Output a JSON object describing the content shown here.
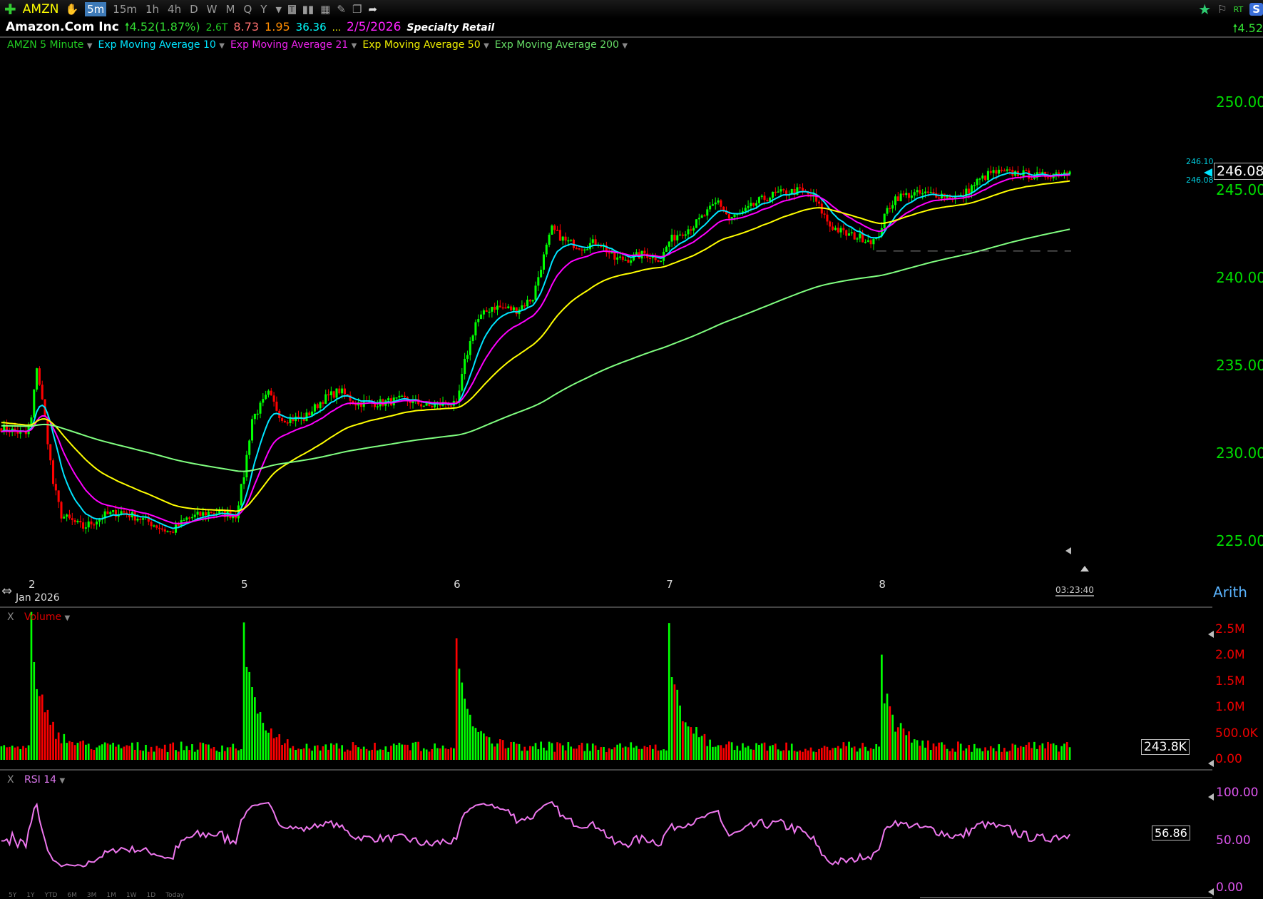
{
  "toolbar": {
    "symbol": "AMZN",
    "timeframes": [
      "5m",
      "15m",
      "1h",
      "4h",
      "D",
      "W",
      "M",
      "Q",
      "Y"
    ],
    "active_timeframe": "5m",
    "rt_label": "RT",
    "s_label": "S"
  },
  "info": {
    "name": "Amazon.Com Inc",
    "change": "4.52",
    "change_pct": "(1.87%)",
    "market_cap": "2.6T",
    "v1": "8.73",
    "v2": "1.95",
    "v3": "36.36",
    "ellipsis": "...",
    "date": "2/5/2026",
    "sector": "Specialty Retail",
    "right_change": "4.52"
  },
  "legend": {
    "series": "AMZN 5 Minute",
    "ema10": "Exp Moving Average 10",
    "ema21": "Exp Moving Average 21",
    "ema50": "Exp Moving Average 50",
    "ema200": "Exp Moving Average 200"
  },
  "colors": {
    "up": "#00ff00",
    "down": "#ff0000",
    "ema10": "#00e5ff",
    "ema21": "#ff00ff",
    "ema50": "#ffff00",
    "ema200": "#80ff80",
    "rsi": "#ee77ee"
  },
  "price_axis": {
    "ticks": [
      "250.00",
      "245.00",
      "240.00",
      "235.00",
      "230.00",
      "225.00"
    ],
    "last": "246.08",
    "bid": "246.10",
    "ask": "246.08",
    "scale": "Arith"
  },
  "time_axis": {
    "days": [
      "2",
      "5",
      "6",
      "7",
      "8"
    ],
    "month": "Jan 2026",
    "clock": "03:23:40"
  },
  "volume": {
    "label": "Volume",
    "close_label": "X",
    "ticks": [
      "2.5M",
      "2.0M",
      "1.5M",
      "1.0M",
      "500.0K",
      "0.00"
    ],
    "last": "243.8K"
  },
  "rsi": {
    "label": "RSI 14",
    "close_label": "X",
    "ticks": [
      "100.00",
      "50.00",
      "0.00"
    ],
    "last": "56.86"
  },
  "ranges": [
    "5Y",
    "1Y",
    "YTD",
    "6M",
    "3M",
    "1M",
    "1W",
    "1D",
    "Today"
  ],
  "chart_data": {
    "type": "candlestick",
    "interval": "5 Minute",
    "ylim": [
      223,
      252
    ],
    "total_bars": 393,
    "day_start_bars": [
      11,
      89,
      167,
      245,
      323
    ],
    "close_keypoints": [
      [
        0,
        231.5
      ],
      [
        9,
        231.1
      ],
      [
        11,
        232
      ],
      [
        13,
        235
      ],
      [
        16,
        232
      ],
      [
        19,
        228.3
      ],
      [
        22,
        226.5
      ],
      [
        30,
        225.8
      ],
      [
        38,
        226.5
      ],
      [
        44,
        226.7
      ],
      [
        53,
        226.2
      ],
      [
        62,
        225.5
      ],
      [
        68,
        226.3
      ],
      [
        77,
        226.7
      ],
      [
        86,
        226.5
      ],
      [
        89,
        228.8
      ],
      [
        92,
        232
      ],
      [
        98,
        233.4
      ],
      [
        103,
        232
      ],
      [
        111,
        232
      ],
      [
        118,
        233.1
      ],
      [
        124,
        233.6
      ],
      [
        130,
        232.9
      ],
      [
        139,
        232.9
      ],
      [
        148,
        233.1
      ],
      [
        157,
        232.7
      ],
      [
        164,
        232.9
      ],
      [
        167,
        232.7
      ],
      [
        170,
        235.2
      ],
      [
        174,
        237.5
      ],
      [
        180,
        238.4
      ],
      [
        189,
        238.2
      ],
      [
        195,
        238.9
      ],
      [
        198,
        240.7
      ],
      [
        202,
        242.8
      ],
      [
        207,
        242.1
      ],
      [
        213,
        241.8
      ],
      [
        219,
        242.1
      ],
      [
        225,
        241.1
      ],
      [
        230,
        241.1
      ],
      [
        236,
        241.4
      ],
      [
        242,
        241.1
      ],
      [
        245,
        242.1
      ],
      [
        248,
        242.5
      ],
      [
        254,
        243
      ],
      [
        260,
        243.9
      ],
      [
        263,
        244.4
      ],
      [
        267,
        243.4
      ],
      [
        272,
        243.7
      ],
      [
        278,
        244.4
      ],
      [
        284,
        244.8
      ],
      [
        293,
        245
      ],
      [
        298,
        244.6
      ],
      [
        304,
        243
      ],
      [
        310,
        242.5
      ],
      [
        316,
        242.3
      ],
      [
        321,
        242.1
      ],
      [
        325,
        243.9
      ],
      [
        328,
        244.6
      ],
      [
        334,
        244.8
      ],
      [
        343,
        244.8
      ],
      [
        352,
        244.6
      ],
      [
        358,
        245.5
      ],
      [
        363,
        246
      ],
      [
        372,
        246
      ],
      [
        381,
        245.8
      ],
      [
        387,
        246
      ],
      [
        393,
        246.08
      ]
    ],
    "support_level": 241.55,
    "volume_open_spikes_M": [
      2.5,
      2.3,
      2.0,
      2.3,
      1.7
    ],
    "volume_base_M": 0.25
  }
}
